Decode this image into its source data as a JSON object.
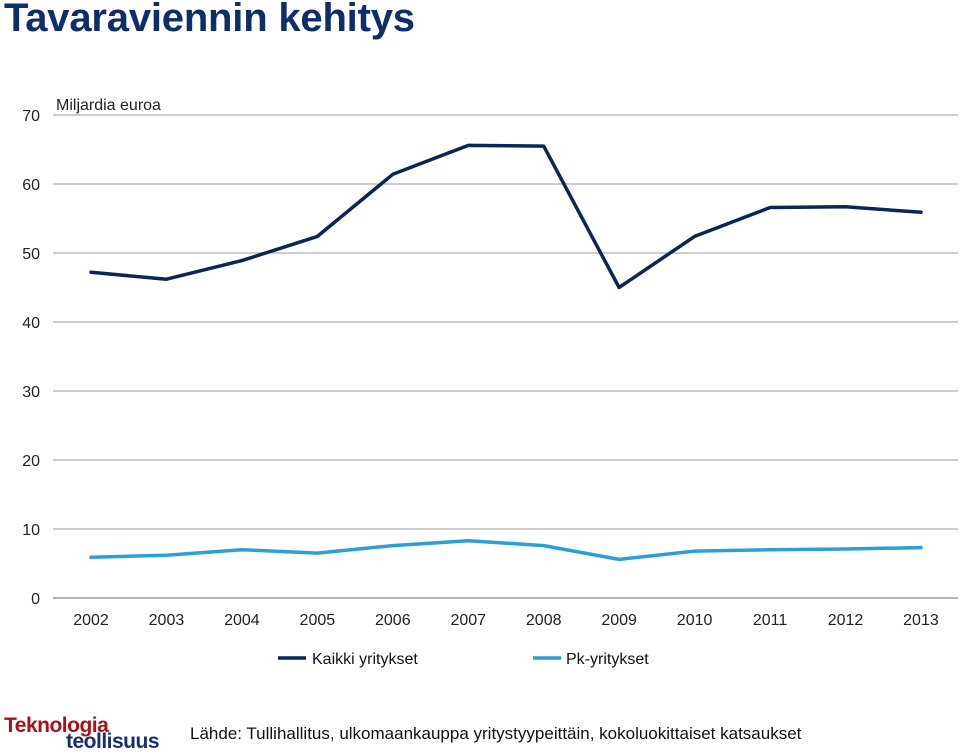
{
  "page": {
    "title": "Tavaraviennin kehitys",
    "source": "Lähde: Tullihallitus, ulkomaankauppa yritystyypeittäin, kokoluokittaiset katsaukset",
    "logo": {
      "line1": "Teknologia",
      "line2": "teollisuus"
    }
  },
  "chart_data": {
    "type": "line",
    "title": "Tavaraviennin kehitys",
    "ylabel": "Miljardia euroa",
    "xlabel": "",
    "categories": [
      "2002",
      "2003",
      "2004",
      "2005",
      "2006",
      "2007",
      "2008",
      "2009",
      "2010",
      "2011",
      "2012",
      "2013"
    ],
    "ylim": [
      0,
      70
    ],
    "yticks": [
      0,
      10,
      20,
      30,
      40,
      50,
      60,
      70
    ],
    "grid": true,
    "legend_position": "bottom",
    "series": [
      {
        "name": "Kaikki yritykset",
        "color": "#0d2459",
        "values": [
          47.2,
          46.2,
          48.9,
          52.4,
          61.4,
          65.6,
          65.5,
          45.0,
          52.4,
          56.6,
          56.7,
          55.9
        ]
      },
      {
        "name": "Pk-yritykset",
        "color": "#2aa0d8",
        "values": [
          5.9,
          6.2,
          7.0,
          6.5,
          7.6,
          8.3,
          7.6,
          5.6,
          6.8,
          7.0,
          7.1,
          7.3
        ]
      }
    ]
  }
}
